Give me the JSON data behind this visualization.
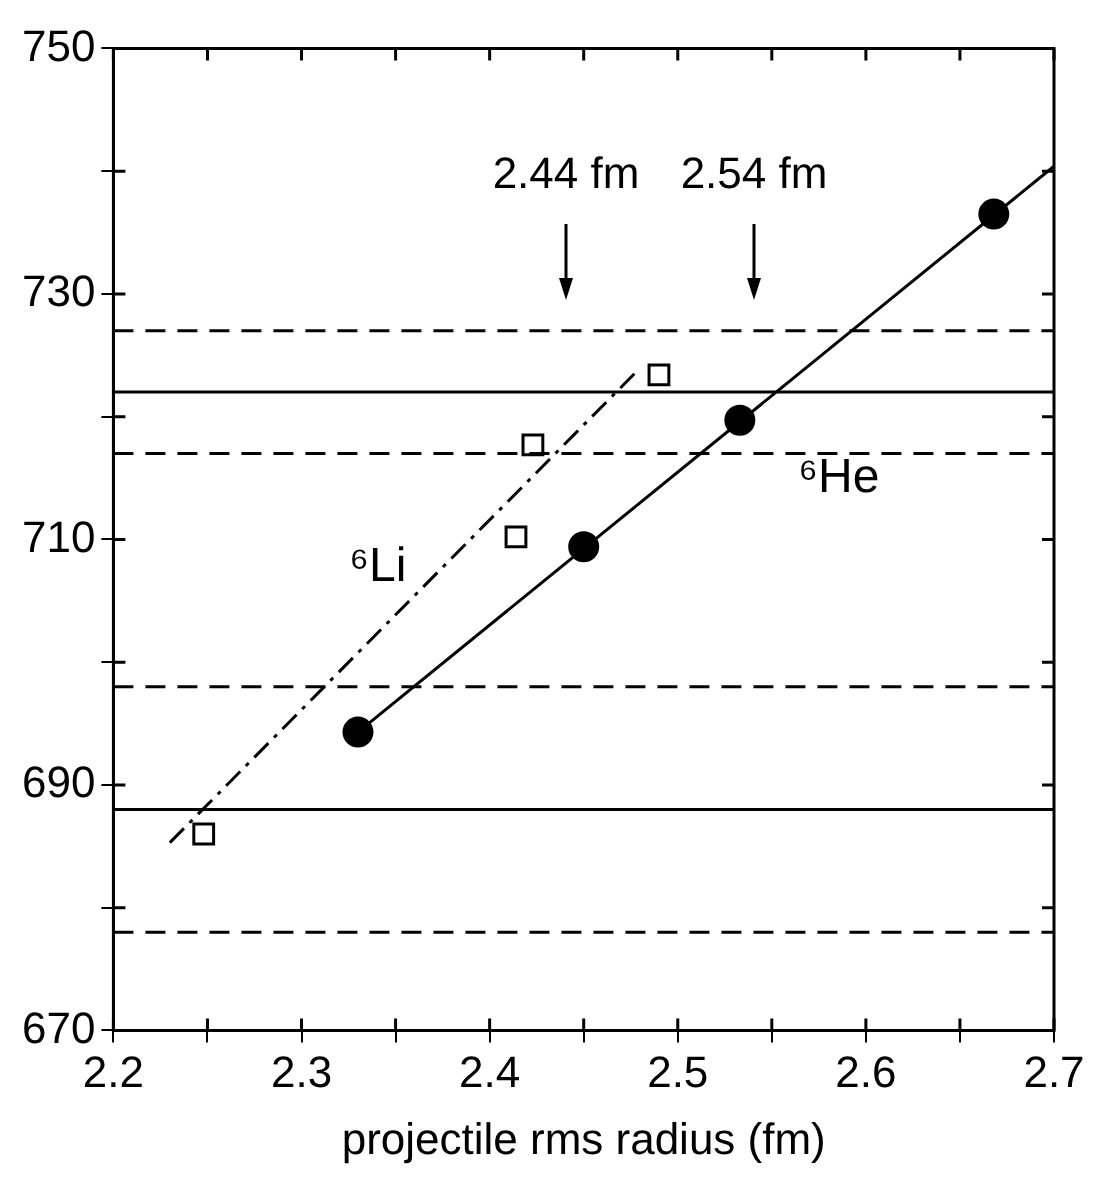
{
  "chart_data": {
    "type": "scatter",
    "xlabel": "projectile rms radius (fm)",
    "xlim": [
      2.2,
      2.7
    ],
    "xticks": [
      2.2,
      {
        "value": 2.25,
        "label": null
      },
      2.3,
      {
        "value": 2.35,
        "label": null
      },
      2.4,
      {
        "value": 2.45,
        "label": null
      },
      2.5,
      {
        "value": 2.55,
        "label": null
      },
      2.6,
      {
        "value": 2.65,
        "label": null
      },
      2.7
    ],
    "ylim": [
      670,
      750
    ],
    "yticks": [
      670,
      {
        "value": 680,
        "label": null
      },
      690,
      {
        "value": 700,
        "label": null
      },
      710,
      {
        "value": 720,
        "label": null
      },
      730,
      {
        "value": 740,
        "label": null
      },
      750
    ],
    "grid": false,
    "legend": false,
    "series": [
      {
        "name": "⁶He",
        "marker": "circle",
        "color": "#000000",
        "x": [
          2.33,
          2.45,
          2.533,
          2.668
        ],
        "values": [
          694.3,
          709.4,
          719.7,
          736.5
        ]
      },
      {
        "type": "line",
        "line_style": "solid",
        "marker": "none",
        "color": "#000000",
        "x": [
          2.33,
          2.7
        ],
        "values": [
          694.3,
          740.4
        ]
      },
      {
        "name": "⁶Li",
        "marker": "square",
        "color": "#000000",
        "x": [
          2.248,
          2.414,
          2.423,
          2.49
        ],
        "values": [
          686.0,
          710.2,
          717.7,
          723.4
        ]
      },
      {
        "type": "line",
        "line_style": "dashdot",
        "marker": "none",
        "color": "#000000",
        "x": [
          2.23,
          2.477
        ],
        "values": [
          685.3,
          723.5
        ]
      }
    ],
    "ref_lines": [
      {
        "axis": "y",
        "value": 727,
        "line_style": "dashed"
      },
      {
        "axis": "y",
        "value": 722,
        "line_style": "solid"
      },
      {
        "axis": "y",
        "value": 717,
        "line_style": "dashed"
      },
      {
        "axis": "y",
        "value": 698,
        "line_style": "dashed"
      },
      {
        "axis": "y",
        "value": 688,
        "line_style": "solid"
      },
      {
        "axis": "y",
        "value": 678,
        "line_style": "dashed"
      }
    ],
    "annotations": [
      "2.44 fm",
      "2.54 fm"
    ]
  }
}
